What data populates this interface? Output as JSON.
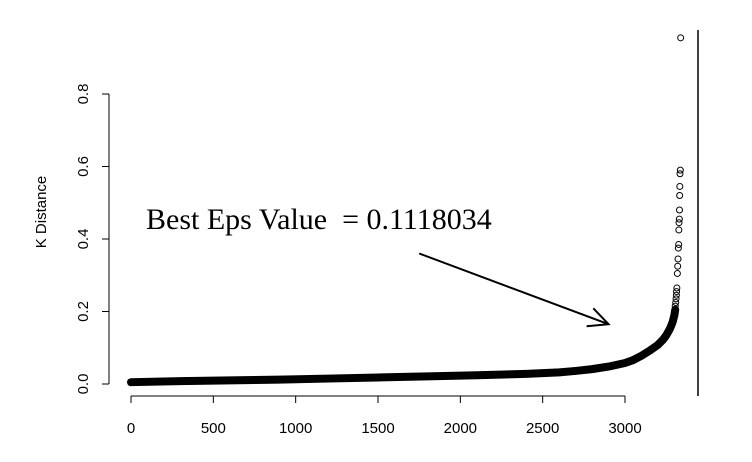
{
  "chart_data": {
    "type": "scatter",
    "title": "",
    "xlabel": "",
    "ylabel": "K Distance",
    "xlim": [
      -50,
      3400
    ],
    "ylim": [
      -0.035,
      0.99
    ],
    "x_ticks": [
      0,
      500,
      1000,
      1500,
      2000,
      2500,
      3000
    ],
    "x_tick_labels": [
      "0",
      "500",
      "1000",
      "1500",
      "2000",
      "2500",
      "3000"
    ],
    "y_ticks": [
      0.0,
      0.2,
      0.4,
      0.6,
      0.8
    ],
    "y_tick_labels": [
      "0.0",
      "0.2",
      "0.4",
      "0.6",
      "0.8"
    ],
    "grid": false,
    "annotation": {
      "text": "Best Eps Value  = 0.1118034",
      "arrow_from": [
        1750,
        0.36
      ],
      "arrow_to": [
        2900,
        0.165
      ]
    },
    "curve_points": [
      [
        0,
        0.005
      ],
      [
        300,
        0.008
      ],
      [
        600,
        0.01
      ],
      [
        900,
        0.012
      ],
      [
        1200,
        0.015
      ],
      [
        1500,
        0.018
      ],
      [
        1800,
        0.021
      ],
      [
        2100,
        0.024
      ],
      [
        2400,
        0.028
      ],
      [
        2600,
        0.032
      ],
      [
        2700,
        0.036
      ],
      [
        2800,
        0.041
      ],
      [
        2900,
        0.048
      ],
      [
        3000,
        0.058
      ],
      [
        3050,
        0.066
      ],
      [
        3100,
        0.078
      ],
      [
        3150,
        0.092
      ],
      [
        3200,
        0.108
      ],
      [
        3230,
        0.122
      ],
      [
        3250,
        0.134
      ],
      [
        3270,
        0.15
      ],
      [
        3280,
        0.16
      ],
      [
        3290,
        0.172
      ],
      [
        3300,
        0.19
      ],
      [
        3305,
        0.205
      ]
    ],
    "outlier_points": [
      [
        3305,
        0.215
      ],
      [
        3308,
        0.225
      ],
      [
        3310,
        0.235
      ],
      [
        3312,
        0.245
      ],
      [
        3313,
        0.255
      ],
      [
        3315,
        0.265
      ],
      [
        3318,
        0.305
      ],
      [
        3320,
        0.325
      ],
      [
        3322,
        0.345
      ],
      [
        3324,
        0.375
      ],
      [
        3326,
        0.385
      ],
      [
        3327,
        0.425
      ],
      [
        3328,
        0.445
      ],
      [
        3330,
        0.455
      ],
      [
        3331,
        0.48
      ],
      [
        3332,
        0.52
      ],
      [
        3333,
        0.545
      ],
      [
        3334,
        0.58
      ],
      [
        3336,
        0.59
      ],
      [
        3338,
        0.955
      ]
    ]
  }
}
